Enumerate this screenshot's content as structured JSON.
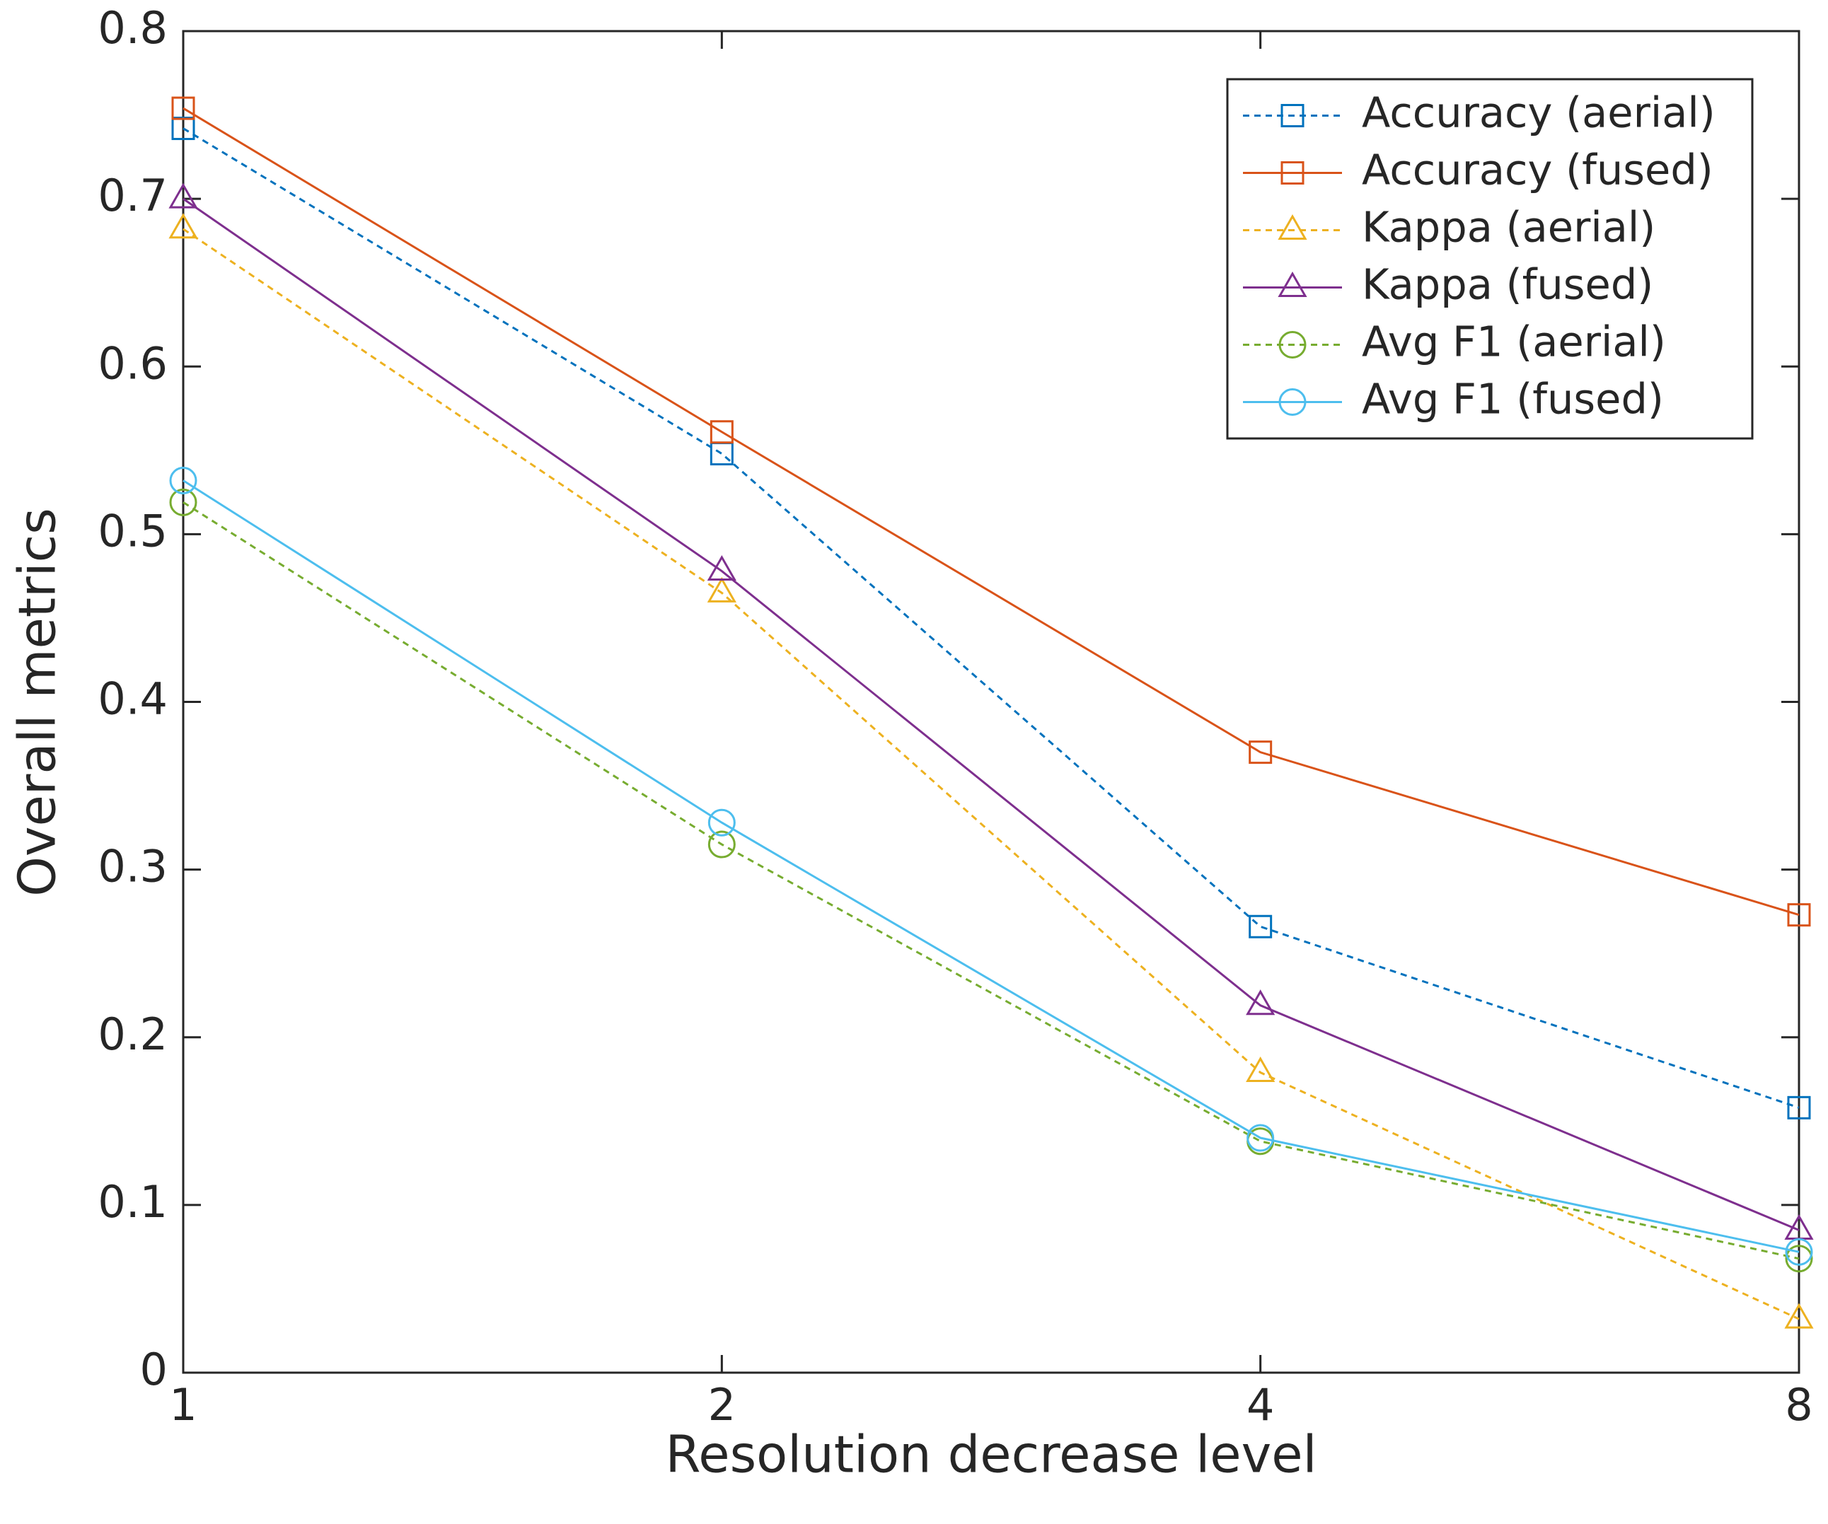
{
  "chart_data": {
    "type": "line",
    "x_label": "Resolution decrease level",
    "y_label": "Overall metrics",
    "x": [
      1,
      2,
      4,
      8
    ],
    "xscale": "log",
    "xlim": [
      1,
      8
    ],
    "xticks": [
      1,
      2,
      4,
      8
    ],
    "ylim": [
      0,
      0.8
    ],
    "yticks": [
      0,
      0.1,
      0.2,
      0.3,
      0.4,
      0.5,
      0.6,
      0.7,
      0.8
    ],
    "legend": "upper right",
    "series": [
      {
        "name": "Accuracy (aerial)",
        "color": "#0072bd",
        "marker": "square",
        "dashed": true,
        "values": [
          0.742,
          0.548,
          0.266,
          0.158
        ]
      },
      {
        "name": "Accuracy (fused)",
        "color": "#d95319",
        "marker": "square",
        "dashed": false,
        "values": [
          0.754,
          0.561,
          0.37,
          0.273
        ]
      },
      {
        "name": "Kappa (aerial)",
        "color": "#edb120",
        "marker": "triangle",
        "dashed": true,
        "values": [
          0.682,
          0.465,
          0.179,
          0.032
        ]
      },
      {
        "name": "Kappa (fused)",
        "color": "#7e2f8e",
        "marker": "triangle",
        "dashed": false,
        "values": [
          0.7,
          0.478,
          0.219,
          0.085
        ]
      },
      {
        "name": "Avg F1 (aerial)",
        "color": "#77ac30",
        "marker": "circle",
        "dashed": true,
        "values": [
          0.519,
          0.315,
          0.138,
          0.068
        ]
      },
      {
        "name": "Avg F1 (fused)",
        "color": "#4dbeee",
        "marker": "circle",
        "dashed": false,
        "values": [
          0.532,
          0.328,
          0.14,
          0.072
        ]
      }
    ]
  }
}
